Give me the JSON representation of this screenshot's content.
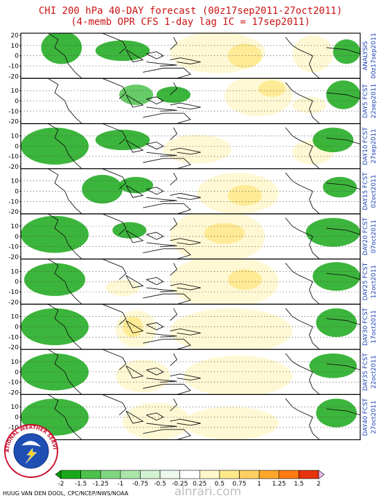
{
  "title": {
    "line1": "CHI 200 hPa 40-DAY forecast (00z17sep2011-27oct2011)",
    "line2": "(4-memb OPR CFS 1-day lag IC = 17sep2011)"
  },
  "logo": {
    "text": "NATIONAL WEATHER SERVICE"
  },
  "credit": "HUUG VAN DEN DOOL, CPC/NCEP/NWS/NOAA",
  "watermark": "alnrari.com",
  "colors": {
    "negative": [
      "#1aa81a",
      "#4cc24c",
      "#7fd67f",
      "#aae6aa",
      "#d2f2d2",
      "#eef9ee"
    ],
    "positive": [
      "#fff7cc",
      "#ffe98a",
      "#ffd060",
      "#ffa62a",
      "#ff7a10",
      "#e8320c",
      "#f2b8f2"
    ]
  },
  "chart_data": {
    "type": "heatmap",
    "variable": "CHI 200 hPa",
    "y_ticks": [
      "20",
      "10",
      "0",
      "-10",
      "-20"
    ],
    "panels": [
      {
        "label": "ANALYSIS",
        "date": "00z17sep2011",
        "features": [
          {
            "lon": 0.12,
            "lat": 8,
            "w": 0.06,
            "h": 16,
            "v": -0.25
          },
          {
            "lon": 0.3,
            "lat": 5,
            "w": 0.08,
            "h": 10,
            "v": -0.4
          },
          {
            "lon": 0.58,
            "lat": 3,
            "w": 0.14,
            "h": 20,
            "v": 0.25
          },
          {
            "lon": 0.66,
            "lat": 0,
            "w": 0.05,
            "h": 12,
            "v": 0.5
          },
          {
            "lon": 0.86,
            "lat": 2,
            "w": 0.06,
            "h": 18,
            "v": 0.3
          },
          {
            "lon": 0.96,
            "lat": 4,
            "w": 0.04,
            "h": 12,
            "v": -0.3
          }
        ]
      },
      {
        "label": "DAY5 FCST",
        "date": "22sep2011",
        "features": [
          {
            "lon": 0.34,
            "lat": 6,
            "w": 0.05,
            "h": 10,
            "v": -0.6
          },
          {
            "lon": 0.45,
            "lat": 6,
            "w": 0.05,
            "h": 8,
            "v": -0.4
          },
          {
            "lon": 0.7,
            "lat": 5,
            "w": 0.1,
            "h": 20,
            "v": 0.35
          },
          {
            "lon": 0.74,
            "lat": 12,
            "w": 0.04,
            "h": 8,
            "v": 0.6
          },
          {
            "lon": 0.85,
            "lat": -4,
            "w": 0.05,
            "h": 8,
            "v": 0.3
          },
          {
            "lon": 0.95,
            "lat": 6,
            "w": 0.05,
            "h": 14,
            "v": -0.3
          }
        ]
      },
      {
        "label": "DAY10 FCST",
        "date": "27sep2011",
        "features": [
          {
            "lon": 0.1,
            "lat": 0,
            "w": 0.1,
            "h": 18,
            "v": -0.25
          },
          {
            "lon": 0.3,
            "lat": 6,
            "w": 0.08,
            "h": 10,
            "v": -0.3
          },
          {
            "lon": 0.52,
            "lat": -3,
            "w": 0.1,
            "h": 14,
            "v": 0.25
          },
          {
            "lon": 0.86,
            "lat": -6,
            "w": 0.06,
            "h": 12,
            "v": 0.35
          },
          {
            "lon": 0.92,
            "lat": 6,
            "w": 0.06,
            "h": 12,
            "v": -0.3
          }
        ]
      },
      {
        "label": "DAY15 FCST",
        "date": "02oct2011",
        "features": [
          {
            "lon": 0.24,
            "lat": 2,
            "w": 0.06,
            "h": 14,
            "v": -0.3
          },
          {
            "lon": 0.34,
            "lat": 6,
            "w": 0.05,
            "h": 8,
            "v": -0.25
          },
          {
            "lon": 0.64,
            "lat": -2,
            "w": 0.12,
            "h": 20,
            "v": 0.3
          },
          {
            "lon": 0.66,
            "lat": -4,
            "w": 0.05,
            "h": 10,
            "v": 0.6
          },
          {
            "lon": 0.94,
            "lat": 4,
            "w": 0.05,
            "h": 10,
            "v": -0.3
          }
        ]
      },
      {
        "label": "DAY20 FCST",
        "date": "07oct2011",
        "features": [
          {
            "lon": 0.1,
            "lat": 2,
            "w": 0.1,
            "h": 18,
            "v": -0.3
          },
          {
            "lon": 0.32,
            "lat": 6,
            "w": 0.05,
            "h": 8,
            "v": -0.3
          },
          {
            "lon": 0.58,
            "lat": 0,
            "w": 0.14,
            "h": 26,
            "v": 0.35
          },
          {
            "lon": 0.6,
            "lat": 3,
            "w": 0.06,
            "h": 10,
            "v": 0.6
          },
          {
            "lon": 0.92,
            "lat": 4,
            "w": 0.08,
            "h": 14,
            "v": -0.4
          }
        ]
      },
      {
        "label": "DAY25 FCST",
        "date": "12oct2011",
        "features": [
          {
            "lon": 0.1,
            "lat": 2,
            "w": 0.09,
            "h": 16,
            "v": -0.25
          },
          {
            "lon": 0.3,
            "lat": -6,
            "w": 0.05,
            "h": 8,
            "v": 0.3
          },
          {
            "lon": 0.6,
            "lat": 0,
            "w": 0.16,
            "h": 26,
            "v": 0.35
          },
          {
            "lon": 0.66,
            "lat": 2,
            "w": 0.05,
            "h": 10,
            "v": 0.6
          },
          {
            "lon": 0.93,
            "lat": 5,
            "w": 0.07,
            "h": 14,
            "v": -0.3
          }
        ]
      },
      {
        "label": "DAY30 FCST",
        "date": "17oct2011",
        "features": [
          {
            "lon": 0.1,
            "lat": 0,
            "w": 0.1,
            "h": 18,
            "v": -0.3
          },
          {
            "lon": 0.34,
            "lat": -2,
            "w": 0.06,
            "h": 18,
            "v": 0.4
          },
          {
            "lon": 0.33,
            "lat": 0,
            "w": 0.03,
            "h": 10,
            "v": 0.6
          },
          {
            "lon": 0.62,
            "lat": -4,
            "w": 0.18,
            "h": 22,
            "v": 0.3
          },
          {
            "lon": 0.93,
            "lat": 4,
            "w": 0.06,
            "h": 14,
            "v": -0.35
          }
        ]
      },
      {
        "label": "DAY35 FCST",
        "date": "22oct2011",
        "features": [
          {
            "lon": 0.1,
            "lat": 0,
            "w": 0.1,
            "h": 18,
            "v": -0.3
          },
          {
            "lon": 0.36,
            "lat": -4,
            "w": 0.08,
            "h": 16,
            "v": 0.35
          },
          {
            "lon": 0.64,
            "lat": -4,
            "w": 0.16,
            "h": 20,
            "v": 0.3
          },
          {
            "lon": 0.92,
            "lat": 6,
            "w": 0.07,
            "h": 12,
            "v": -0.3
          }
        ]
      },
      {
        "label": "DAY40 FCST",
        "date": "27oct2011",
        "features": [
          {
            "lon": 0.1,
            "lat": 0,
            "w": 0.1,
            "h": 18,
            "v": -0.3
          },
          {
            "lon": 0.4,
            "lat": -4,
            "w": 0.1,
            "h": 18,
            "v": 0.35
          },
          {
            "lon": 0.62,
            "lat": -6,
            "w": 0.14,
            "h": 16,
            "v": 0.3
          },
          {
            "lon": 0.93,
            "lat": 4,
            "w": 0.06,
            "h": 14,
            "v": -0.3
          }
        ]
      }
    ],
    "colorbar": {
      "labels": [
        "-2",
        "-1.5",
        "-1.25",
        "-1",
        "-0.75",
        "-0.5",
        "-0.25",
        "0.25",
        "0.5",
        "0.75",
        "1",
        "1.25",
        "1.5",
        "2"
      ]
    }
  }
}
